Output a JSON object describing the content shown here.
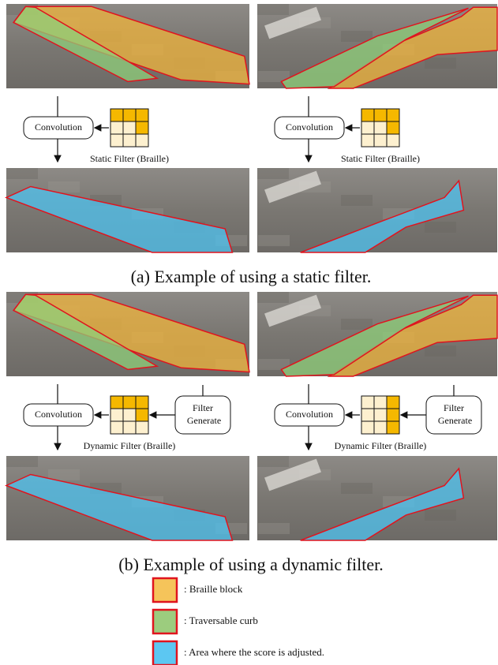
{
  "panels": [
    {
      "caption": "(a) Example of using a static filter.",
      "examples": [
        {
          "operation": "Convolution",
          "filter_label": "Static Filter (Braille)"
        },
        {
          "operation": "Convolution",
          "filter_label": "Static Filter (Braille)"
        }
      ]
    },
    {
      "caption": "(b) Example of using a dynamic filter.",
      "examples": [
        {
          "operation": "Convolution",
          "filter_label": "Dynamic Filter (Braille)",
          "generator": "Filter Generate"
        },
        {
          "operation": "Convolution",
          "filter_label": "Dynamic Filter (Braille)",
          "generator": "Filter Generate"
        }
      ]
    }
  ],
  "legend": [
    {
      "label": ": Braille block"
    },
    {
      "label": ": Traversable curb"
    },
    {
      "label": ": Area where the score is adjusted."
    }
  ]
}
